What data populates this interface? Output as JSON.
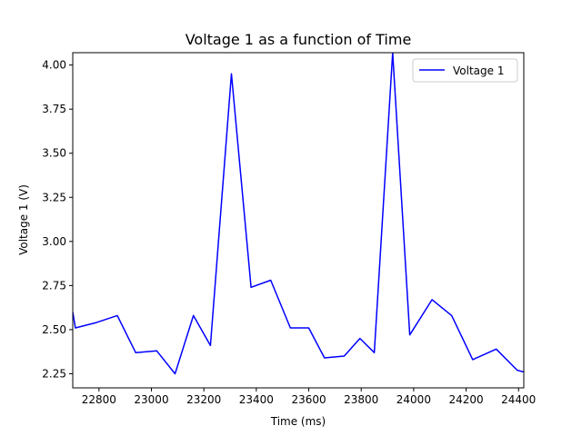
{
  "chart_data": {
    "type": "line",
    "title": "Voltage 1 as a function of Time",
    "xlabel": "Time (ms)",
    "ylabel": "Voltage 1 (V)",
    "xlim": [
      22700,
      24420
    ],
    "ylim": [
      2.17,
      4.07
    ],
    "xticks": [
      22800,
      23000,
      23200,
      23400,
      23600,
      23800,
      24000,
      24200,
      24400
    ],
    "yticks": [
      2.25,
      2.5,
      2.75,
      3.0,
      3.25,
      3.5,
      3.75,
      4.0
    ],
    "xtick_labels": [
      "22800",
      "23000",
      "23200",
      "23400",
      "23600",
      "23800",
      "24000",
      "24200",
      "24400"
    ],
    "ytick_labels": [
      "2.25",
      "2.50",
      "2.75",
      "3.00",
      "3.25",
      "3.50",
      "3.75",
      "4.00"
    ],
    "grid": false,
    "legend": {
      "position": "top-right",
      "entries": [
        "Voltage 1"
      ]
    },
    "series": [
      {
        "name": "Voltage 1",
        "color": "#0000ff",
        "x": [
          22700,
          22710,
          22790,
          22870,
          22940,
          23020,
          23090,
          23160,
          23225,
          23305,
          23380,
          23455,
          23530,
          23600,
          23660,
          23735,
          23795,
          23850,
          23920,
          23985,
          24070,
          24145,
          24225,
          24315,
          24395,
          24420
        ],
        "y": [
          2.6,
          2.51,
          2.54,
          2.58,
          2.37,
          2.38,
          2.25,
          2.58,
          2.41,
          3.95,
          2.74,
          2.78,
          2.51,
          2.51,
          2.34,
          2.35,
          2.45,
          2.37,
          4.07,
          2.47,
          2.67,
          2.58,
          2.33,
          2.39,
          2.27,
          2.26
        ]
      }
    ]
  }
}
